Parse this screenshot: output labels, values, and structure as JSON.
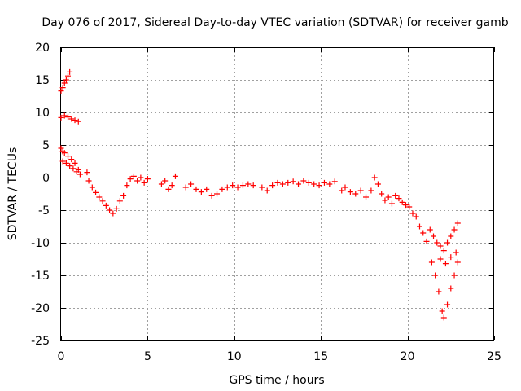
{
  "chart_data": {
    "type": "scatter",
    "title": "Day 076 of 2017, Sidereal Day-to-day VTEC variation (SDTVAR) for receiver gamb",
    "xlabel": "GPS time / hours",
    "ylabel": "SDTVAR / TECUs",
    "xlim": [
      0,
      25
    ],
    "ylim": [
      -25,
      20
    ],
    "xticks": [
      0,
      5,
      10,
      15,
      20,
      25
    ],
    "yticks": [
      20,
      15,
      10,
      5,
      0,
      -5,
      -10,
      -15,
      -20,
      -25
    ],
    "grid": true,
    "marker": "+",
    "series": [
      {
        "name": "SDTVAR",
        "color": "#ff0000",
        "points": [
          [
            0.0,
            13.3
          ],
          [
            0.1,
            13.8
          ],
          [
            0.2,
            14.5
          ],
          [
            0.3,
            15.0
          ],
          [
            0.4,
            15.6
          ],
          [
            0.5,
            16.2
          ],
          [
            0.0,
            9.2
          ],
          [
            0.2,
            9.5
          ],
          [
            0.4,
            9.3
          ],
          [
            0.6,
            9.0
          ],
          [
            0.8,
            8.8
          ],
          [
            1.0,
            8.6
          ],
          [
            0.0,
            4.5
          ],
          [
            0.1,
            4.0
          ],
          [
            0.2,
            3.8
          ],
          [
            0.4,
            3.3
          ],
          [
            0.6,
            2.8
          ],
          [
            0.8,
            2.2
          ],
          [
            1.0,
            1.2
          ],
          [
            0.1,
            2.5
          ],
          [
            0.3,
            2.2
          ],
          [
            0.5,
            1.8
          ],
          [
            0.7,
            1.4
          ],
          [
            0.9,
            0.9
          ],
          [
            1.1,
            0.5
          ],
          [
            1.5,
            0.8
          ],
          [
            1.6,
            -0.5
          ],
          [
            1.8,
            -1.5
          ],
          [
            2.0,
            -2.3
          ],
          [
            2.2,
            -3.0
          ],
          [
            2.4,
            -3.6
          ],
          [
            2.6,
            -4.3
          ],
          [
            2.8,
            -5.0
          ],
          [
            3.0,
            -5.5
          ],
          [
            3.2,
            -4.8
          ],
          [
            3.4,
            -3.6
          ],
          [
            3.6,
            -2.8
          ],
          [
            3.8,
            -1.2
          ],
          [
            4.0,
            -0.2
          ],
          [
            4.2,
            0.2
          ],
          [
            4.4,
            -0.5
          ],
          [
            4.6,
            0.0
          ],
          [
            4.8,
            -0.8
          ],
          [
            5.0,
            -0.2
          ],
          [
            5.8,
            -1.0
          ],
          [
            6.0,
            -0.5
          ],
          [
            6.2,
            -1.8
          ],
          [
            6.4,
            -1.2
          ],
          [
            6.6,
            0.2
          ],
          [
            7.2,
            -1.5
          ],
          [
            7.5,
            -1.0
          ],
          [
            7.8,
            -1.8
          ],
          [
            8.1,
            -2.2
          ],
          [
            8.4,
            -1.8
          ],
          [
            8.7,
            -2.8
          ],
          [
            9.0,
            -2.5
          ],
          [
            9.3,
            -1.8
          ],
          [
            9.6,
            -1.5
          ],
          [
            9.9,
            -1.2
          ],
          [
            10.2,
            -1.5
          ],
          [
            10.5,
            -1.2
          ],
          [
            10.8,
            -1.0
          ],
          [
            11.1,
            -1.2
          ],
          [
            11.6,
            -1.5
          ],
          [
            11.9,
            -2.0
          ],
          [
            12.2,
            -1.2
          ],
          [
            12.5,
            -0.8
          ],
          [
            12.8,
            -1.0
          ],
          [
            13.1,
            -0.8
          ],
          [
            13.4,
            -0.6
          ],
          [
            13.7,
            -1.0
          ],
          [
            14.0,
            -0.5
          ],
          [
            14.3,
            -0.8
          ],
          [
            14.6,
            -1.0
          ],
          [
            14.9,
            -1.2
          ],
          [
            15.2,
            -0.8
          ],
          [
            15.5,
            -1.0
          ],
          [
            15.8,
            -0.6
          ],
          [
            16.2,
            -2.0
          ],
          [
            16.4,
            -1.5
          ],
          [
            16.7,
            -2.2
          ],
          [
            17.0,
            -2.5
          ],
          [
            17.3,
            -2.0
          ],
          [
            17.6,
            -3.0
          ],
          [
            17.9,
            -2.0
          ],
          [
            18.1,
            0.0
          ],
          [
            18.3,
            -1.0
          ],
          [
            18.5,
            -2.5
          ],
          [
            18.7,
            -3.5
          ],
          [
            18.9,
            -3.0
          ],
          [
            19.1,
            -4.0
          ],
          [
            19.3,
            -2.8
          ],
          [
            19.5,
            -3.2
          ],
          [
            19.7,
            -3.8
          ],
          [
            19.9,
            -4.2
          ],
          [
            20.1,
            -4.5
          ],
          [
            20.3,
            -5.5
          ],
          [
            20.5,
            -6.0
          ],
          [
            20.7,
            -7.5
          ],
          [
            20.9,
            -8.5
          ],
          [
            21.1,
            -9.8
          ],
          [
            21.3,
            -8.0
          ],
          [
            21.5,
            -9.0
          ],
          [
            21.7,
            -10.0
          ],
          [
            21.9,
            -10.5
          ],
          [
            22.1,
            -11.2
          ],
          [
            22.3,
            -10.0
          ],
          [
            22.5,
            -9.0
          ],
          [
            22.7,
            -8.0
          ],
          [
            22.9,
            -7.0
          ],
          [
            21.9,
            -12.5
          ],
          [
            22.2,
            -13.2
          ],
          [
            22.5,
            -12.2
          ],
          [
            22.8,
            -11.5
          ],
          [
            21.4,
            -13.0
          ],
          [
            21.6,
            -15.0
          ],
          [
            21.8,
            -17.5
          ],
          [
            22.0,
            -20.5
          ],
          [
            22.1,
            -21.5
          ],
          [
            22.3,
            -19.5
          ],
          [
            22.5,
            -17.0
          ],
          [
            22.7,
            -15.0
          ],
          [
            22.9,
            -13.0
          ]
        ]
      }
    ]
  }
}
